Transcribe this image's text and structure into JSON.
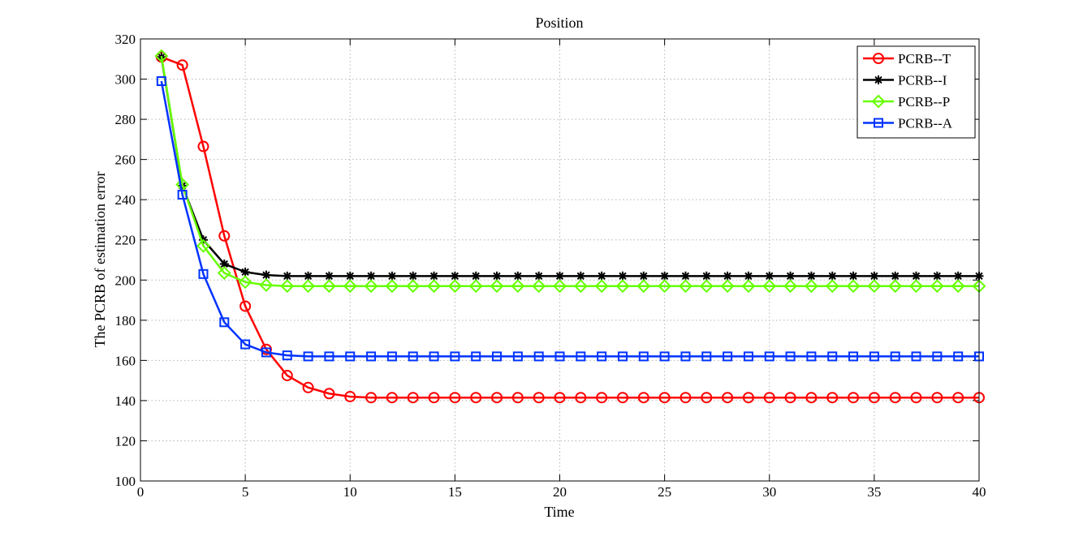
{
  "chart_data": {
    "type": "line",
    "title": "Position",
    "xlabel": "Time",
    "ylabel": "The PCRB of estimation error",
    "xlim": [
      0,
      40
    ],
    "ylim": [
      100,
      320
    ],
    "xticks": [
      0,
      5,
      10,
      15,
      20,
      25,
      30,
      35,
      40
    ],
    "yticks": [
      100,
      120,
      140,
      160,
      180,
      200,
      220,
      240,
      260,
      280,
      300,
      320
    ],
    "grid": true,
    "legend_position": "top-right",
    "x": [
      1,
      2,
      3,
      4,
      5,
      6,
      7,
      8,
      9,
      10,
      11,
      12,
      13,
      14,
      15,
      16,
      17,
      18,
      19,
      20,
      21,
      22,
      23,
      24,
      25,
      26,
      27,
      28,
      29,
      30,
      31,
      32,
      33,
      34,
      35,
      36,
      37,
      38,
      39,
      40
    ],
    "series": [
      {
        "name": "PCRB--T",
        "color": "#ff0000",
        "marker": "circle",
        "values": [
          311,
          307,
          266.5,
          222,
          187,
          165.5,
          152.5,
          146.5,
          143.5,
          142,
          141.5,
          141.5,
          141.5,
          141.5,
          141.5,
          141.5,
          141.5,
          141.5,
          141.5,
          141.5,
          141.5,
          141.5,
          141.5,
          141.5,
          141.5,
          141.5,
          141.5,
          141.5,
          141.5,
          141.5,
          141.5,
          141.5,
          141.5,
          141.5,
          141.5,
          141.5,
          141.5,
          141.5,
          141.5,
          141.5
        ]
      },
      {
        "name": "PCRB--I",
        "color": "#000000",
        "marker": "asterisk",
        "values": [
          311,
          247,
          220,
          208,
          204,
          202.5,
          202,
          202,
          202,
          202,
          202,
          202,
          202,
          202,
          202,
          202,
          202,
          202,
          202,
          202,
          202,
          202,
          202,
          202,
          202,
          202,
          202,
          202,
          202,
          202,
          202,
          202,
          202,
          202,
          202,
          202,
          202,
          202,
          202,
          202
        ]
      },
      {
        "name": "PCRB--P",
        "color": "#66ff00",
        "marker": "diamond",
        "values": [
          311.5,
          247.5,
          217,
          203.5,
          199,
          197.5,
          197,
          197,
          197,
          197,
          197,
          197,
          197,
          197,
          197,
          197,
          197,
          197,
          197,
          197,
          197,
          197,
          197,
          197,
          197,
          197,
          197,
          197,
          197,
          197,
          197,
          197,
          197,
          197,
          197,
          197,
          197,
          197,
          197,
          197
        ]
      },
      {
        "name": "PCRB--A",
        "color": "#0033ff",
        "marker": "square",
        "values": [
          299,
          242.5,
          203,
          179,
          168,
          164,
          162.5,
          162,
          162,
          162,
          162,
          162,
          162,
          162,
          162,
          162,
          162,
          162,
          162,
          162,
          162,
          162,
          162,
          162,
          162,
          162,
          162,
          162,
          162,
          162,
          162,
          162,
          162,
          162,
          162,
          162,
          162,
          162,
          162,
          162
        ]
      }
    ]
  }
}
